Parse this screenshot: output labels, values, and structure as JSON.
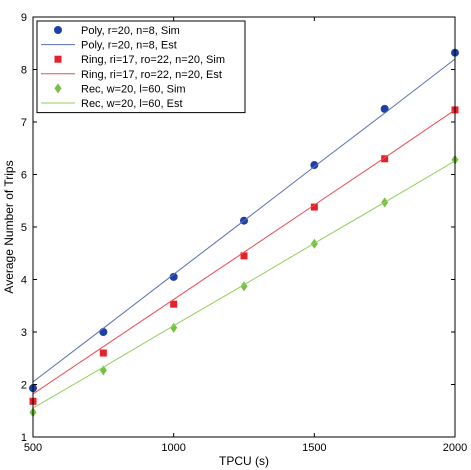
{
  "chart_data": {
    "type": "line",
    "xlabel": "TPCU (s)",
    "ylabel": "Average Number of Trips",
    "xlim": [
      500,
      2000
    ],
    "ylim": [
      1,
      9
    ],
    "xticks": [
      500,
      1000,
      1500,
      2000
    ],
    "yticks": [
      1,
      2,
      3,
      4,
      5,
      6,
      7,
      8,
      9
    ],
    "grid": false,
    "legend_position": "top-left",
    "x": [
      500,
      750,
      1000,
      1250,
      1500,
      1750,
      2000
    ],
    "series": [
      {
        "name": "Poly, r=20, n=8, Sim",
        "kind": "marker",
        "marker": "circle",
        "color": "#1f3fa8",
        "values": [
          1.93,
          3.0,
          4.05,
          5.12,
          6.18,
          7.25,
          8.32
        ]
      },
      {
        "name": "Poly, r=20, n=8, Est",
        "kind": "line",
        "color": "#5a6eb8",
        "values": [
          2.05,
          3.07,
          4.1,
          5.12,
          6.15,
          7.17,
          8.2
        ]
      },
      {
        "name": "Ring, ri=17, ro=22, n=20, Sim",
        "kind": "marker",
        "marker": "square",
        "color": "#e8202a",
        "values": [
          1.68,
          2.6,
          3.53,
          4.45,
          5.38,
          6.3,
          7.23
        ]
      },
      {
        "name": "Ring, ri=17, ro=22, n=20, Est",
        "kind": "line",
        "color": "#ee4a50",
        "values": [
          1.82,
          2.72,
          3.62,
          4.52,
          5.42,
          6.32,
          7.23
        ]
      },
      {
        "name": "Rec, w=20, l=60, Sim",
        "kind": "marker",
        "marker": "diamond",
        "color": "#76c043",
        "values": [
          1.47,
          2.27,
          3.08,
          3.87,
          4.68,
          5.47,
          6.28
        ]
      },
      {
        "name": "Rec, w=20, l=60, Est",
        "kind": "line",
        "color": "#8ed25e",
        "values": [
          1.55,
          2.33,
          3.12,
          3.9,
          4.69,
          5.47,
          6.26
        ]
      }
    ]
  }
}
